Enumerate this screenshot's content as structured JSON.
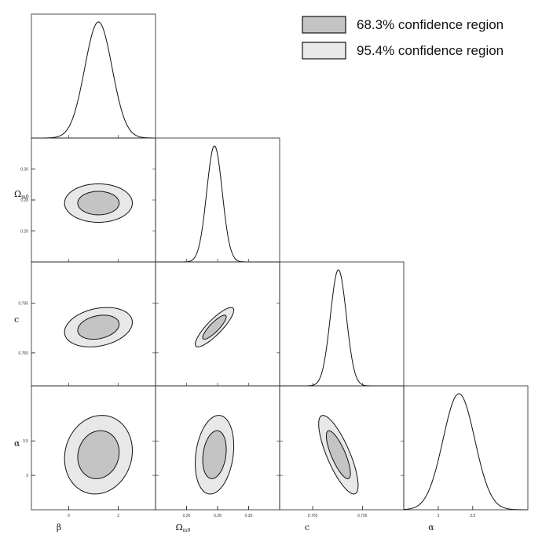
{
  "chart_data": {
    "type": "corner",
    "parameters": [
      {
        "key": "beta",
        "label": "β",
        "sub": "",
        "range": [
          -1.5,
          3.5
        ],
        "ticks": [
          0,
          2
        ],
        "tick_labels": [
          "0",
          "2"
        ],
        "mean": 1.2,
        "sigma": 0.55
      },
      {
        "key": "om",
        "label": "Ω",
        "sub": "m0",
        "range": [
          0.24,
          0.32
        ],
        "ticks": [
          0.26,
          0.28,
          0.3
        ],
        "tick_labels": [
          "0.26",
          "0.28",
          "0.30"
        ],
        "mean": 0.278,
        "sigma": 0.005
      },
      {
        "key": "c",
        "label": "c",
        "sub": "",
        "range": [
          0.745,
          0.82
        ],
        "ticks": [
          0.765,
          0.795
        ],
        "tick_labels": [
          "0.765",
          "0.795"
        ],
        "mean": 0.7805,
        "sigma": 0.0048
      },
      {
        "key": "alpha",
        "label": "α",
        "sub": "",
        "range": [
          2.5,
          4.3
        ],
        "ticks": [
          3.0,
          3.5
        ],
        "tick_labels": [
          "3",
          "3.5"
        ],
        "mean": 3.3,
        "sigma": 0.23
      }
    ],
    "contours": [
      {
        "pair": [
          "beta",
          "om"
        ],
        "rho": 0.0
      },
      {
        "pair": [
          "beta",
          "c"
        ],
        "rho": 0.25
      },
      {
        "pair": [
          "om",
          "c"
        ],
        "rho": 0.86
      },
      {
        "pair": [
          "beta",
          "alpha"
        ],
        "rho": 0.1
      },
      {
        "pair": [
          "om",
          "alpha"
        ],
        "rho": 0.22
      },
      {
        "pair": [
          "c",
          "alpha"
        ],
        "rho": -0.78
      }
    ],
    "confidence_levels": [
      {
        "label": "68.3% confidence region",
        "chi2": 2.3,
        "color": "#c4c4c4"
      },
      {
        "label": "95.4% confidence region",
        "chi2": 6.17,
        "color": "#e8e8e8"
      }
    ],
    "legend_position": "top-right"
  }
}
